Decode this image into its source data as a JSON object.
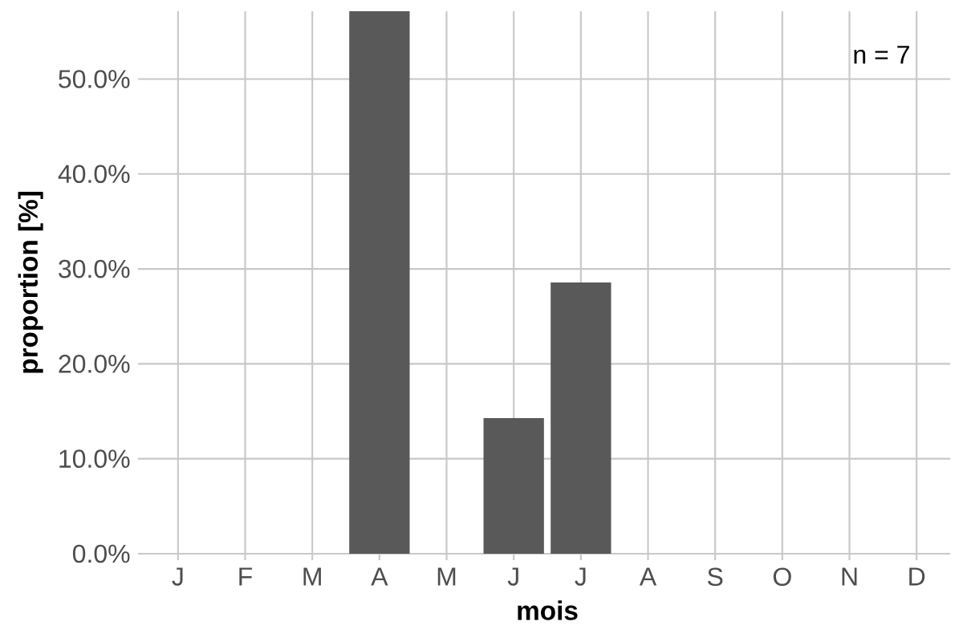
{
  "chart_data": {
    "type": "bar",
    "categories": [
      "J",
      "F",
      "M",
      "A",
      "M",
      "J",
      "J",
      "A",
      "S",
      "O",
      "N",
      "D"
    ],
    "values": [
      0,
      0,
      0,
      57.14,
      0,
      14.29,
      28.57,
      0,
      0,
      0,
      0,
      0
    ],
    "color": "#595959",
    "xlabel": "mois",
    "ylabel": "proportion [%]",
    "annotations": [
      "n = 7"
    ],
    "ylim": [
      0,
      57.14
    ],
    "yticks": [
      {
        "value": 0,
        "label": "0.0%"
      },
      {
        "value": 10,
        "label": "10.0%"
      },
      {
        "value": 20,
        "label": "20.0%"
      },
      {
        "value": 30,
        "label": "30.0%"
      },
      {
        "value": 40,
        "label": "40.0%"
      },
      {
        "value": 50,
        "label": "50.0%"
      }
    ],
    "grid": true
  }
}
